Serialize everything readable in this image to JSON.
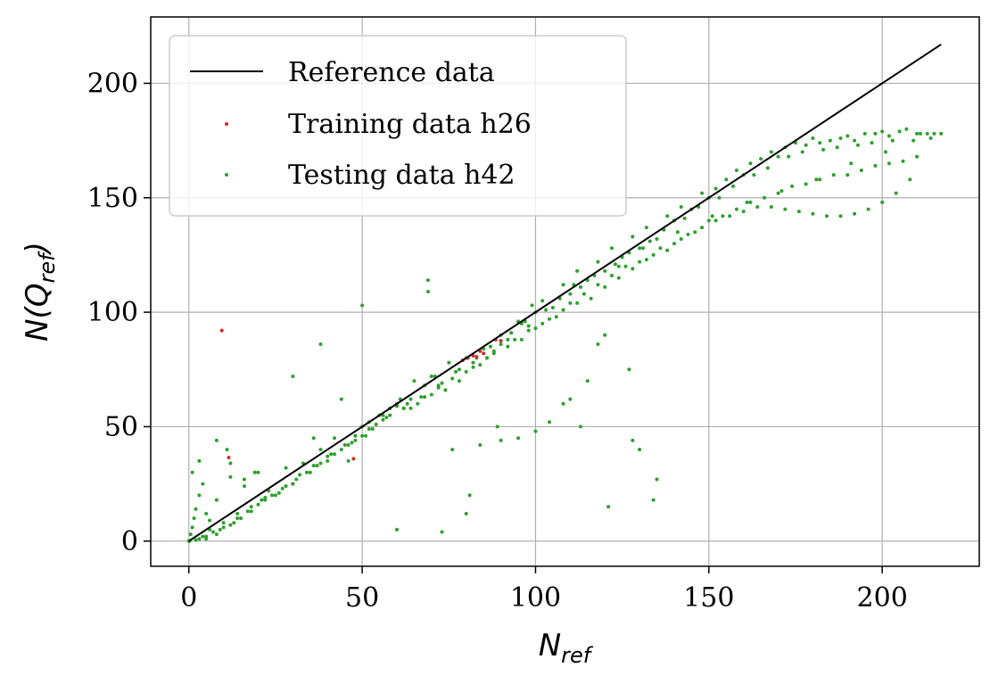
{
  "chart_data": {
    "type": "scatter",
    "title": "",
    "xlabel": {
      "main": "N",
      "sub": "ref"
    },
    "ylabel": {
      "pre": "N(Q",
      "sub": "ref",
      "post": ")"
    },
    "xlim": [
      -11,
      228
    ],
    "ylim": [
      -11,
      229
    ],
    "xticks": [
      0,
      50,
      100,
      150,
      200
    ],
    "yticks": [
      0,
      50,
      100,
      150,
      200
    ],
    "xtick_labels": [
      "0",
      "50",
      "100",
      "150",
      "200"
    ],
    "ytick_labels": [
      "0",
      "50",
      "100",
      "150",
      "200"
    ],
    "grid": true,
    "legend_position": "top-left",
    "series": [
      {
        "name": "Reference data",
        "kind": "line",
        "color": "#000000",
        "x": [
          0,
          217
        ],
        "y": [
          0,
          217
        ]
      },
      {
        "name": "Training data h26",
        "kind": "scatter",
        "color": "#d62728",
        "x": [
          9.5,
          11.5,
          47.5,
          79,
          80.5,
          82,
          83,
          84,
          85,
          88.5,
          90
        ],
        "y": [
          92,
          36.5,
          36,
          79,
          80,
          81,
          80.5,
          83,
          82,
          88,
          87.5
        ]
      },
      {
        "name": "Testing data h42",
        "kind": "scatter",
        "color": "#2ca02c",
        "x": [
          0,
          0.5,
          1,
          1.5,
          2,
          3,
          4,
          5,
          6,
          8,
          10,
          12,
          14,
          16,
          18,
          20,
          22,
          25,
          28,
          30,
          33,
          35,
          38,
          40,
          42,
          45,
          48,
          50,
          52,
          55,
          58,
          60,
          62,
          65,
          68,
          70,
          72,
          75,
          78,
          80,
          82,
          85,
          88,
          90,
          92,
          95,
          98,
          100,
          102,
          105,
          108,
          110,
          112,
          115,
          118,
          120,
          122,
          125,
          128,
          130,
          132,
          135,
          138,
          140,
          142,
          145,
          148,
          150,
          152,
          155,
          158,
          160,
          162,
          165,
          168,
          170,
          172,
          175,
          178,
          180,
          182,
          185,
          188,
          190,
          192,
          195,
          198,
          200,
          202,
          205,
          207,
          210,
          213,
          215,
          217,
          4,
          6,
          8,
          12,
          15,
          18,
          22,
          26,
          30,
          34,
          38,
          42,
          46,
          50,
          54,
          58,
          62,
          66,
          70,
          74,
          78,
          82,
          86,
          90,
          94,
          98,
          102,
          106,
          110,
          114,
          118,
          122,
          126,
          130,
          134,
          138,
          142,
          146,
          150,
          154,
          158,
          162,
          166,
          170,
          174,
          178,
          182,
          186,
          190,
          194,
          198,
          202,
          206,
          210,
          3,
          7,
          10,
          14,
          20,
          24,
          28,
          32,
          36,
          40,
          44,
          48,
          52,
          56,
          60,
          64,
          68,
          72,
          76,
          80,
          84,
          88,
          92,
          96,
          100,
          104,
          108,
          112,
          116,
          120,
          124,
          128,
          132,
          136,
          140,
          144,
          148,
          152,
          156,
          160,
          164,
          168,
          172,
          176,
          180,
          184,
          188,
          192,
          196,
          200,
          204,
          208,
          2,
          5,
          9,
          13,
          17,
          21,
          27,
          31,
          37,
          41,
          47,
          53,
          57,
          63,
          67,
          73,
          77,
          83,
          87,
          93,
          97,
          103,
          107,
          113,
          117,
          123,
          127,
          133,
          137,
          143,
          147,
          153,
          157,
          163,
          167,
          173,
          177,
          183,
          187,
          193,
          197,
          203,
          209,
          214,
          69,
          69,
          50,
          38,
          30,
          120,
          118,
          127,
          135,
          128,
          134,
          115,
          110,
          104,
          100,
          95,
          90,
          84,
          76,
          73,
          89,
          108,
          130,
          113,
          121,
          80,
          81,
          60,
          46,
          12,
          3,
          1,
          0.2,
          5,
          8,
          11,
          16,
          19,
          23,
          36,
          44,
          51,
          56,
          61,
          64,
          71,
          86,
          96,
          99,
          111,
          124,
          131,
          141,
          151,
          161,
          171,
          181,
          191,
          201,
          211
        ],
        "y": [
          0,
          3,
          6,
          10,
          14,
          20,
          25,
          12,
          5,
          18,
          8,
          28,
          10,
          24,
          15,
          30,
          19,
          20,
          32,
          25,
          34,
          30,
          40,
          35,
          45,
          42,
          46,
          50,
          52,
          55,
          58,
          60,
          58,
          70,
          68,
          72,
          68,
          78,
          75,
          80,
          78,
          84,
          82,
          90,
          88,
          96,
          94,
          100,
          105,
          102,
          112,
          108,
          118,
          114,
          122,
          118,
          128,
          124,
          133,
          128,
          137,
          132,
          142,
          140,
          146,
          145,
          152,
          150,
          154,
          158,
          162,
          160,
          165,
          167,
          170,
          168,
          172,
          174,
          173,
          176,
          174,
          175,
          176,
          177,
          175,
          178,
          178,
          179,
          177,
          179,
          180,
          178,
          178,
          178,
          178,
          2,
          9,
          3,
          7,
          10,
          13,
          18,
          21,
          25,
          30,
          34,
          38,
          42,
          46,
          51,
          55,
          58,
          60,
          64,
          66,
          70,
          76,
          80,
          86,
          88,
          92,
          95,
          98,
          104,
          108,
          112,
          116,
          120,
          122,
          125,
          127,
          132,
          135,
          140,
          142,
          145,
          148,
          150,
          152,
          155,
          156,
          158,
          160,
          160,
          162,
          164,
          165,
          166,
          168,
          1,
          4,
          6,
          12,
          16,
          20,
          24,
          29,
          33,
          37,
          40,
          44,
          49,
          53,
          59,
          62,
          63,
          67,
          71,
          74,
          77,
          83,
          85,
          88,
          93,
          97,
          101,
          104,
          106,
          111,
          115,
          119,
          123,
          128,
          130,
          134,
          137,
          140,
          142,
          144,
          146,
          146,
          145,
          144,
          143,
          142,
          142,
          143,
          145,
          148,
          152,
          158,
          0.5,
          2,
          5,
          8,
          13,
          18,
          23,
          27,
          33,
          38,
          43,
          49,
          54,
          60,
          63,
          69,
          74,
          80,
          85,
          91,
          96,
          101,
          106,
          111,
          116,
          121,
          126,
          131,
          136,
          141,
          146,
          150,
          155,
          160,
          163,
          168,
          170,
          171,
          172,
          173,
          174,
          175,
          175,
          176,
          114,
          109,
          103,
          86,
          72,
          90,
          86,
          75,
          27,
          44,
          18,
          70,
          62,
          52,
          48,
          45,
          44,
          42,
          40,
          4,
          50,
          60,
          40,
          50,
          15,
          12,
          20,
          5,
          35,
          34,
          35,
          30,
          0,
          1,
          44,
          40,
          27,
          30,
          22,
          45,
          62,
          46,
          55,
          62,
          58,
          72,
          80,
          95,
          103,
          112,
          120,
          128,
          135,
          142,
          148,
          153,
          158,
          165,
          170,
          178
        ]
      }
    ]
  }
}
